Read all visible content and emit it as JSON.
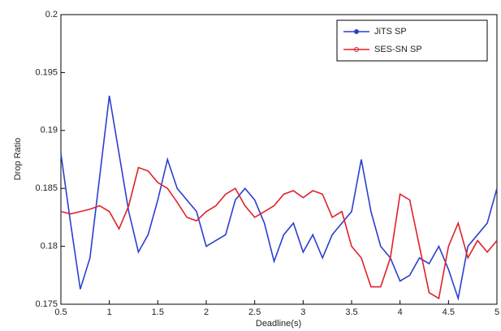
{
  "chart_data": {
    "type": "line",
    "x_label": "Deadline(s)",
    "y_label": "Drop Ratio",
    "x": [
      0.5,
      0.6,
      0.7,
      0.8,
      0.9,
      1.0,
      1.1,
      1.2,
      1.3,
      1.4,
      1.5,
      1.6,
      1.7,
      1.8,
      1.9,
      2.0,
      2.1,
      2.2,
      2.3,
      2.4,
      2.5,
      2.6,
      2.7,
      2.8,
      2.9,
      3.0,
      3.1,
      3.2,
      3.3,
      3.4,
      3.5,
      3.6,
      3.7,
      3.8,
      3.9,
      4.0,
      4.1,
      4.2,
      4.3,
      4.4,
      4.5,
      4.6,
      4.7,
      4.8,
      4.9,
      5.0
    ],
    "series": [
      {
        "name": "JiTS SP",
        "color": "#2a3fd0",
        "values": [
          0.188,
          0.182,
          0.1763,
          0.179,
          0.186,
          0.193,
          0.188,
          0.183,
          0.1795,
          0.181,
          0.184,
          0.1875,
          0.185,
          0.184,
          0.183,
          0.18,
          0.1805,
          0.181,
          0.184,
          0.185,
          0.184,
          0.182,
          0.1787,
          0.181,
          0.182,
          0.1795,
          0.181,
          0.179,
          0.181,
          0.182,
          0.183,
          0.1875,
          0.183,
          0.18,
          0.179,
          0.177,
          0.1775,
          0.179,
          0.1785,
          0.18,
          0.178,
          0.1755,
          0.18,
          0.181,
          0.182,
          0.185
        ]
      },
      {
        "name": "SES-SN SP",
        "color": "#e0202a",
        "values": [
          0.183,
          0.1828,
          0.183,
          0.1832,
          0.1835,
          0.183,
          0.1815,
          0.1835,
          0.1868,
          0.1865,
          0.1855,
          0.185,
          0.1838,
          0.1825,
          0.1822,
          0.183,
          0.1835,
          0.1845,
          0.185,
          0.1835,
          0.1825,
          0.183,
          0.1835,
          0.1845,
          0.1848,
          0.1842,
          0.1848,
          0.1845,
          0.1825,
          0.183,
          0.18,
          0.179,
          0.1765,
          0.1765,
          0.179,
          0.1845,
          0.184,
          0.18,
          0.176,
          0.1755,
          0.18,
          0.182,
          0.179,
          0.1805,
          0.1795,
          0.1805
        ]
      }
    ],
    "xlim": [
      0.5,
      5
    ],
    "ylim": [
      0.175,
      0.2
    ],
    "xticks": [
      0.5,
      1,
      1.5,
      2,
      2.5,
      3,
      3.5,
      4,
      4.5,
      5
    ],
    "yticks": [
      0.175,
      0.18,
      0.185,
      0.19,
      0.195,
      0.2
    ],
    "legend": "upper right"
  }
}
